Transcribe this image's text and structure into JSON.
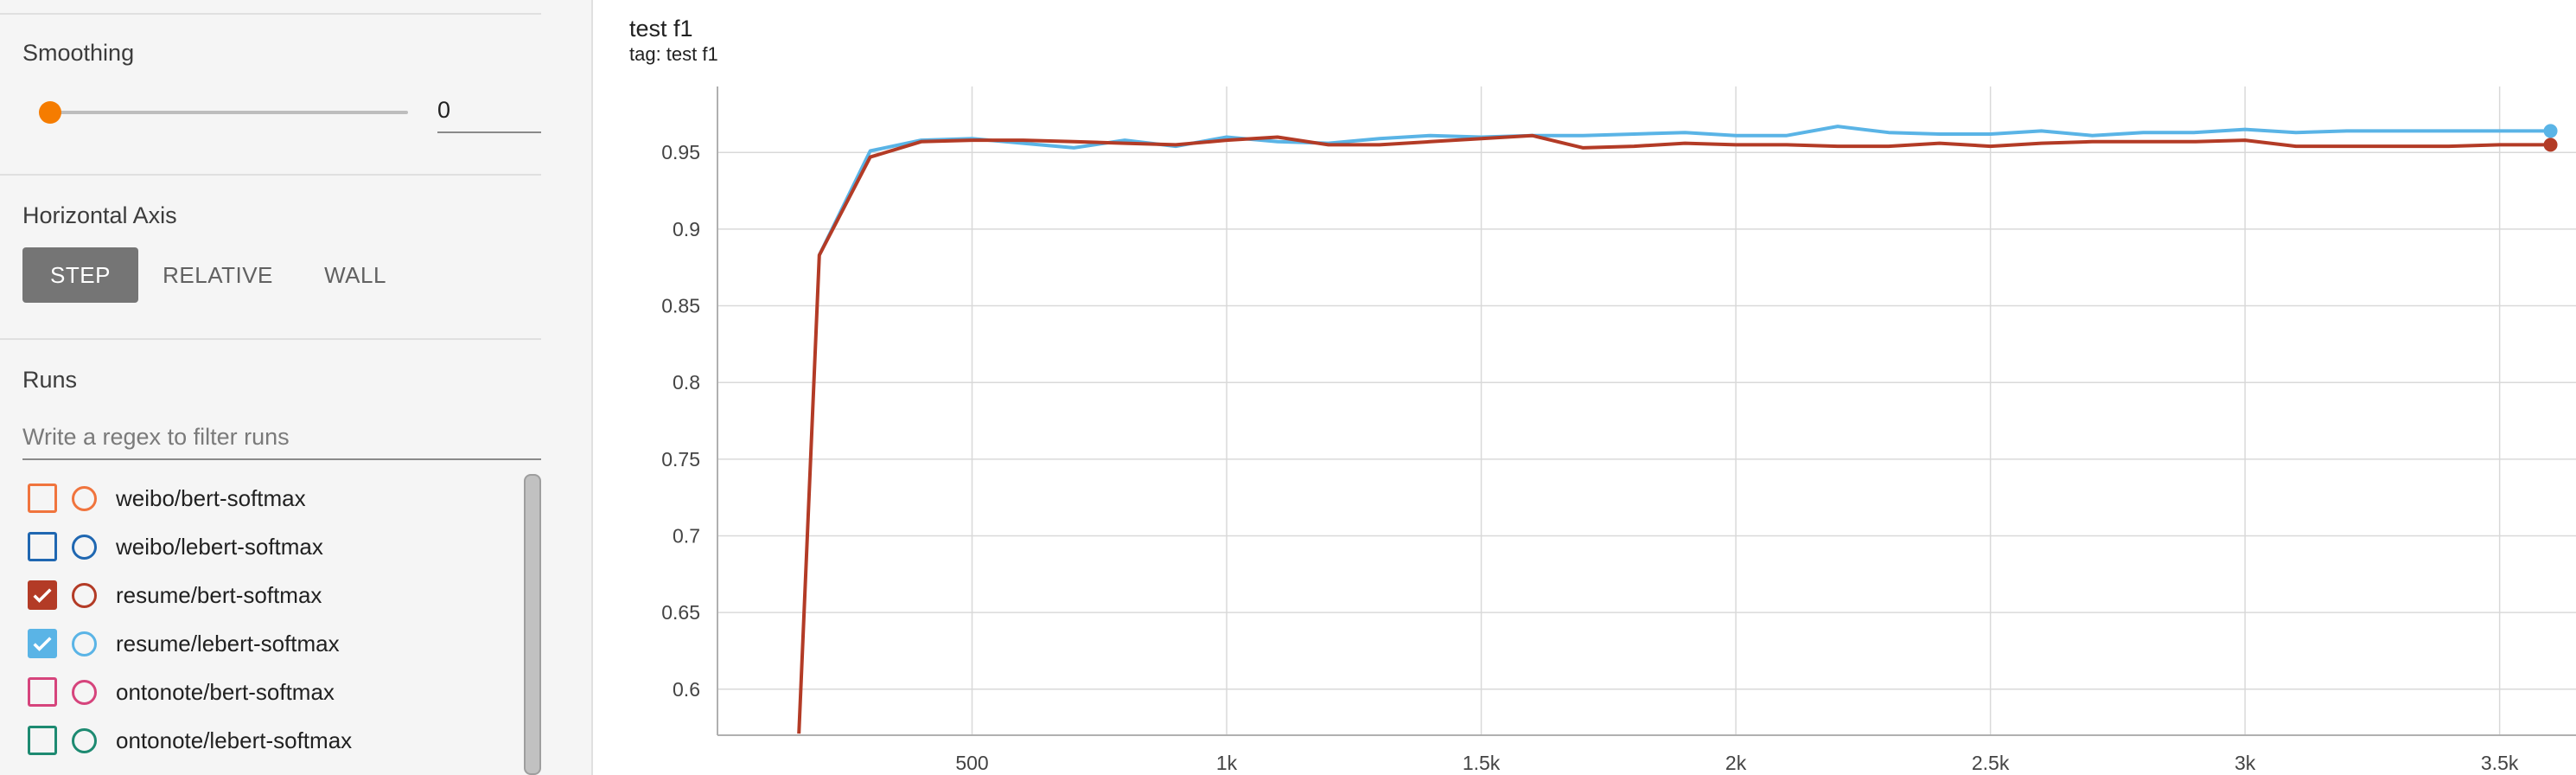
{
  "sidebar": {
    "smoothing": {
      "label": "Smoothing",
      "value": "0",
      "slider_value": 0
    },
    "horizontal_axis": {
      "label": "Horizontal Axis",
      "options": [
        "STEP",
        "RELATIVE",
        "WALL"
      ],
      "selected": "STEP"
    },
    "runs": {
      "label": "Runs",
      "filter_placeholder": "Write a regex to filter runs",
      "items": [
        {
          "name": "weibo/bert-softmax",
          "color": "#f0743d",
          "checked": false
        },
        {
          "name": "weibo/lebert-softmax",
          "color": "#1f67b1",
          "checked": false
        },
        {
          "name": "resume/bert-softmax",
          "color": "#b33b26",
          "checked": true
        },
        {
          "name": "resume/lebert-softmax",
          "color": "#5ab4e6",
          "checked": true
        },
        {
          "name": "ontonote/bert-softmax",
          "color": "#d6447c",
          "checked": false
        },
        {
          "name": "ontonote/lebert-softmax",
          "color": "#1d8a71",
          "checked": false
        }
      ]
    }
  },
  "chart": {
    "title": "test f1",
    "subtitle": "tag: test f1"
  },
  "chart_data": {
    "type": "line",
    "xlim": [
      0,
      3650
    ],
    "ylim": [
      0.57,
      0.993
    ],
    "x_ticks": [
      500,
      1000,
      1500,
      2000,
      2500,
      3000,
      3500
    ],
    "x_tick_labels": [
      "500",
      "1k",
      "1.5k",
      "2k",
      "2.5k",
      "3k",
      "3.5k"
    ],
    "y_ticks": [
      0.6,
      0.65,
      0.7,
      0.75,
      0.8,
      0.85,
      0.9,
      0.95
    ],
    "y_tick_labels": [
      "0.6",
      "0.65",
      "0.7",
      "0.75",
      "0.8",
      "0.85",
      "0.9",
      "0.95"
    ],
    "grid": true,
    "series": [
      {
        "name": "resume/lebert-softmax",
        "color": "#5ab4e6",
        "x": [
          200,
          300,
          400,
          500,
          600,
          700,
          800,
          900,
          1000,
          1100,
          1200,
          1300,
          1400,
          1500,
          1600,
          1700,
          1800,
          1900,
          2000,
          2100,
          2200,
          2300,
          2400,
          2500,
          2600,
          2700,
          2800,
          2900,
          3000,
          3100,
          3200,
          3300,
          3400,
          3500,
          3600
        ],
        "values": [
          0.883,
          0.951,
          0.958,
          0.959,
          0.956,
          0.953,
          0.958,
          0.954,
          0.96,
          0.957,
          0.956,
          0.959,
          0.961,
          0.96,
          0.961,
          0.961,
          0.962,
          0.963,
          0.961,
          0.961,
          0.967,
          0.963,
          0.962,
          0.962,
          0.964,
          0.961,
          0.963,
          0.963,
          0.965,
          0.963,
          0.964,
          0.964,
          0.964,
          0.964,
          0.964
        ]
      },
      {
        "name": "resume/bert-softmax",
        "color": "#b33b26",
        "x": [
          160,
          200,
          300,
          400,
          500,
          600,
          700,
          800,
          900,
          1000,
          1100,
          1200,
          1300,
          1400,
          1500,
          1600,
          1700,
          1800,
          1900,
          2000,
          2100,
          2200,
          2300,
          2400,
          2500,
          2600,
          2700,
          2800,
          2900,
          3000,
          3100,
          3200,
          3300,
          3400,
          3500,
          3600
        ],
        "values": [
          0.571,
          0.883,
          0.947,
          0.957,
          0.958,
          0.958,
          0.957,
          0.956,
          0.955,
          0.958,
          0.96,
          0.955,
          0.955,
          0.957,
          0.959,
          0.961,
          0.953,
          0.954,
          0.956,
          0.955,
          0.955,
          0.954,
          0.954,
          0.956,
          0.954,
          0.956,
          0.957,
          0.957,
          0.957,
          0.958,
          0.954,
          0.954,
          0.954,
          0.954,
          0.955,
          0.955
        ]
      }
    ]
  }
}
